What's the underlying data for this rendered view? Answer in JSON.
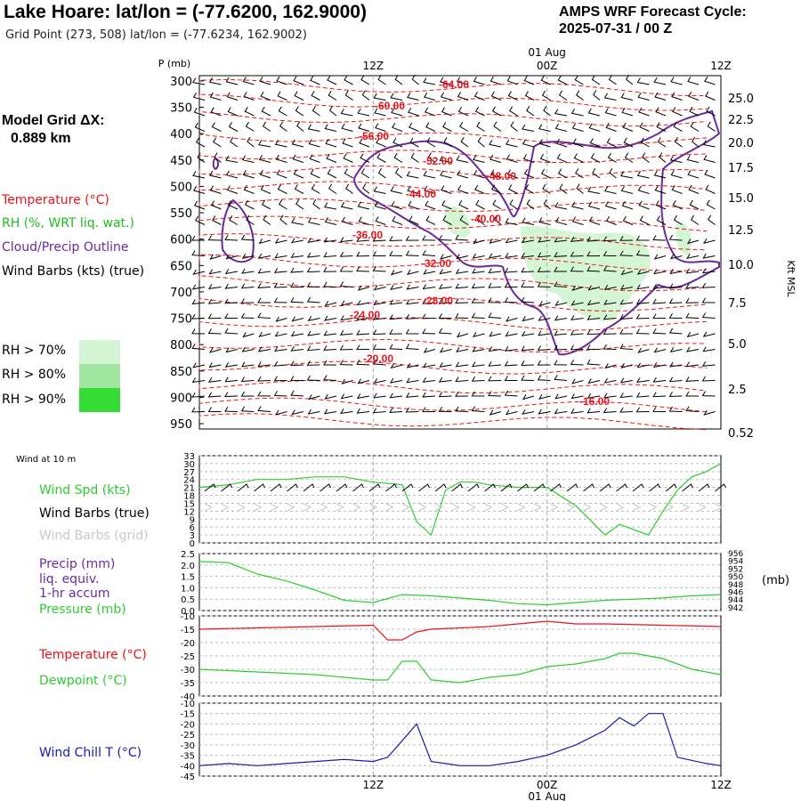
{
  "header": {
    "title": "Lake Hoare:  lat/lon = (-77.6200, 162.9000)",
    "subtitle": "Grid Point (273, 508) lat/lon = (-77.6234, 162.9002)",
    "cycle_line1": "AMPS WRF Forecast Cycle:",
    "cycle_line2": "2025-07-31 / 00  Z",
    "grid_dx_line1": "Model Grid ΔX:",
    "grid_dx_line2": "0.889 km"
  },
  "legend": {
    "temperature": "Temperature (°C)",
    "rh": "RH (%, WRT liq. wat.)",
    "cloud": "Cloud/Precip Outline",
    "wind": "Wind Barbs (kts) (true)",
    "rh70": "RH > 70%",
    "rh80": "RH > 80%",
    "rh90": "RH > 90%"
  },
  "colors": {
    "temperature": "#e8141a",
    "rh": "#1fbf1f",
    "cloud": "#6a2a99",
    "rh70": "#d3f5d3",
    "rh80": "#a0e6a0",
    "rh90": "#33dd33",
    "windchill": "#1a1aaa",
    "gridbarb": "#c8c8c8"
  },
  "chart_data": [
    {
      "type": "heatmap",
      "panel": "cross-section",
      "y_axis_label": "P (mb)",
      "y_ticks": [
        "300",
        "350",
        "400",
        "450",
        "500",
        "550",
        "600",
        "650",
        "700",
        "750",
        "800",
        "850",
        "900",
        "950"
      ],
      "right_axis_label": "Kft MSL",
      "right_ticks": [
        "25.0",
        "22.5",
        "20.0",
        "17.5",
        "15.0",
        "12.5",
        "10.0",
        "7.5",
        "5.0",
        "2.5",
        "0.52"
      ],
      "x_ticks_top": [
        "12Z",
        "00Z",
        "12Z"
      ],
      "date_label_top": "01 Aug",
      "x_range_hours": [
        0,
        36
      ],
      "temperature_contour_labels": [
        "-64.00",
        "-60.00",
        "-56.00",
        "-52.00",
        "-48.00",
        "-44.00",
        "-40.00",
        "-36.00",
        "-32.00",
        "-28.00",
        "-24.00",
        "-20.00",
        "-16.00"
      ]
    },
    {
      "type": "line",
      "panel": "wind",
      "title_small": "Wind at 10 m",
      "labels": [
        "Wind Spd (kts)",
        "Wind Barbs (true)",
        "Wind Barbs (grid)"
      ],
      "y_ticks": [
        "33",
        "30",
        "27",
        "24",
        "21",
        "18",
        "15",
        "12",
        "9",
        "6",
        "3",
        "0"
      ],
      "ylim": [
        0,
        33
      ],
      "series": [
        {
          "name": "Wind Spd (kts)",
          "color": "#2ecc2e",
          "x": [
            0,
            2,
            4,
            6,
            8,
            10,
            12,
            14,
            15,
            16,
            17,
            18,
            19,
            20,
            22,
            24,
            26,
            28,
            29,
            30,
            31,
            32,
            33,
            34,
            35,
            36
          ],
          "y": [
            21,
            22,
            24,
            24,
            25,
            25,
            23,
            22,
            8,
            3,
            20,
            23,
            23,
            22,
            21,
            21,
            14,
            3,
            7,
            5,
            3,
            12,
            20,
            25,
            27,
            30
          ]
        }
      ]
    },
    {
      "type": "line",
      "panel": "precip-pressure",
      "labels": [
        "Precip (mm)",
        "liq. equiv.",
        "1-hr accum",
        "Pressure (mb)"
      ],
      "y_ticks": [
        "2.5",
        "2.0",
        "1.5",
        "1.0",
        "0.5",
        "0.0"
      ],
      "ylim": [
        0,
        2.5
      ],
      "right_ticks": [
        "956",
        "954",
        "952",
        "950",
        "948",
        "946",
        "944",
        "942"
      ],
      "right_unit": "(mb)",
      "series": [
        {
          "name": "Pressure (mb)",
          "color": "#2ecc2e",
          "x": [
            0,
            2,
            4,
            6,
            8,
            10,
            12,
            14,
            16,
            18,
            20,
            22,
            24,
            26,
            28,
            30,
            32,
            34,
            36
          ],
          "y": [
            2.15,
            2.1,
            1.6,
            1.3,
            0.9,
            0.45,
            0.35,
            0.7,
            0.65,
            0.55,
            0.45,
            0.3,
            0.25,
            0.35,
            0.45,
            0.5,
            0.55,
            0.65,
            0.7
          ]
        }
      ]
    },
    {
      "type": "line",
      "panel": "temperature",
      "labels": [
        "Temperature (°C)",
        "Dewpoint (°C)"
      ],
      "y_ticks": [
        "-10",
        "-15",
        "-20",
        "-25",
        "-30",
        "-35",
        "-40"
      ],
      "ylim": [
        -40,
        -10
      ],
      "series": [
        {
          "name": "Temperature (°C)",
          "color": "#e8141a",
          "x": [
            0,
            4,
            8,
            12,
            13,
            14,
            15,
            16,
            20,
            24,
            26,
            28,
            32,
            36
          ],
          "y": [
            -15,
            -14.5,
            -14,
            -13.5,
            -19,
            -19,
            -16,
            -15,
            -14,
            -12,
            -13,
            -13,
            -13.5,
            -14
          ]
        },
        {
          "name": "Dewpoint (°C)",
          "color": "#2ecc2e",
          "x": [
            0,
            4,
            8,
            12,
            13,
            14,
            15,
            16,
            18,
            20,
            22,
            24,
            26,
            28,
            29,
            30,
            32,
            34,
            36
          ],
          "y": [
            -30,
            -31,
            -32,
            -34,
            -34,
            -27,
            -27,
            -34,
            -35,
            -33,
            -32,
            -29,
            -28,
            -26,
            -24,
            -24,
            -26,
            -30,
            -32
          ]
        }
      ]
    },
    {
      "type": "line",
      "panel": "windchill",
      "labels": [
        "Wind Chill T (°C)"
      ],
      "y_ticks": [
        "-10",
        "-15",
        "-20",
        "-25",
        "-30",
        "-35",
        "-40",
        "-45"
      ],
      "ylim": [
        -45,
        -10
      ],
      "x_ticks_bottom": [
        "12Z",
        "00Z",
        "12Z"
      ],
      "date_label_bottom": "01 Aug",
      "series": [
        {
          "name": "Wind Chill T (°C)",
          "color": "#1a1aaa",
          "x": [
            0,
            2,
            4,
            6,
            8,
            10,
            12,
            13,
            14,
            15,
            16,
            18,
            20,
            22,
            24,
            26,
            28,
            29,
            30,
            31,
            32,
            33,
            35,
            36
          ],
          "y": [
            -40,
            -39,
            -40,
            -39,
            -38,
            -37,
            -38,
            -36,
            -28,
            -20,
            -38,
            -40,
            -40,
            -38,
            -35,
            -30,
            -23,
            -17,
            -21,
            -15,
            -15,
            -36,
            -39,
            -40
          ]
        }
      ]
    }
  ]
}
